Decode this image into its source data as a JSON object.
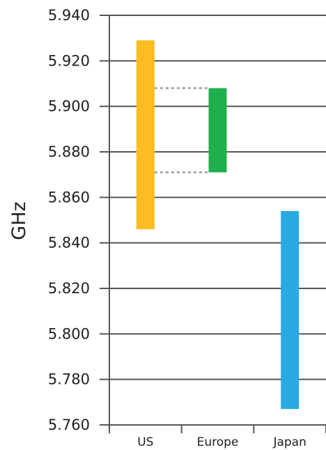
{
  "chart_data": {
    "type": "bar",
    "subtype": "floating-range",
    "title": "",
    "xlabel": "",
    "ylabel": "GHz",
    "ylim": [
      5.76,
      5.94
    ],
    "yticks": [
      "5.760",
      "5.780",
      "5.800",
      "5.820",
      "5.840",
      "5.860",
      "5.880",
      "5.900",
      "5.920",
      "5.940"
    ],
    "grid": "horizontal",
    "legend": "none",
    "categories": [
      "US",
      "Europe",
      "Japan"
    ],
    "ranges": [
      {
        "category": "US",
        "low": 5.846,
        "high": 5.929,
        "color": "#FBBD21"
      },
      {
        "category": "Europe",
        "low": 5.871,
        "high": 5.908,
        "color": "#1FB04E"
      },
      {
        "category": "Japan",
        "low": 5.767,
        "high": 5.854,
        "color": "#29ABE2"
      }
    ],
    "connectors": [
      {
        "from": "US",
        "to": "Europe",
        "y": 5.908,
        "style": "dotted"
      },
      {
        "from": "US",
        "to": "Europe",
        "y": 5.871,
        "style": "dotted"
      }
    ],
    "colors": {
      "axis": "#555555",
      "grid": "#555555",
      "connector": "#999999"
    }
  }
}
